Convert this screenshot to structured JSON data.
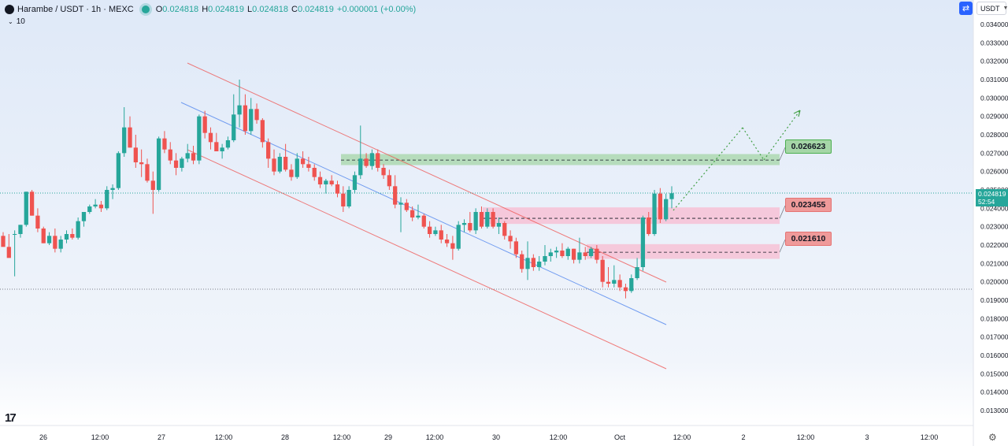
{
  "header": {
    "symbol": "Harambe / USDT · 1h · MEXC",
    "o_label": "O",
    "o_value": "0.024818",
    "h_label": "H",
    "h_value": "0.024819",
    "l_label": "L",
    "l_value": "0.024818",
    "c_label": "C",
    "c_value": "0.024819",
    "change": "+0.000001 (+0.00%)"
  },
  "indicator_count": "10",
  "currency_selector": "USDT",
  "live_price": "0.024819",
  "countdown": "52:54",
  "levels": [
    {
      "label": "0.026623",
      "color": "#4caf50"
    },
    {
      "label": "0.023455",
      "color": "#e57373"
    },
    {
      "label": "0.021610",
      "color": "#e57373"
    }
  ],
  "chart_data": {
    "type": "candlestick",
    "y_axis_ticks": [
      "0.034000",
      "0.033000",
      "0.032000",
      "0.031000",
      "0.030000",
      "0.029000",
      "0.028000",
      "0.027000",
      "0.026000",
      "0.025000",
      "0.024000",
      "0.023000",
      "0.022000",
      "0.021000",
      "0.020000",
      "0.019000",
      "0.018000",
      "0.017000",
      "0.016000",
      "0.015000",
      "0.014000",
      "0.013000"
    ],
    "ylim": [
      0.013,
      0.034
    ],
    "x_axis_ticks": [
      "26",
      "12:00",
      "27",
      "12:00",
      "28",
      "12:00",
      "29",
      "12:00",
      "30",
      "12:00",
      "Oct",
      "12:00",
      "2",
      "12:00",
      "3",
      "12:00"
    ],
    "colors": {
      "up": "#26a69a",
      "down": "#ef5350"
    },
    "candles": [
      [
        0.0225,
        0.0227,
        0.022,
        0.0219
      ],
      [
        0.0219,
        0.0226,
        0.0215,
        0.0213
      ],
      [
        0.0226,
        0.0228,
        0.0203,
        0.0226
      ],
      [
        0.0226,
        0.0231,
        0.0224,
        0.0231
      ],
      [
        0.0231,
        0.0249,
        0.023,
        0.0249
      ],
      [
        0.0249,
        0.025,
        0.0236,
        0.0236
      ],
      [
        0.0236,
        0.024,
        0.0227,
        0.0229
      ],
      [
        0.0229,
        0.023,
        0.0221,
        0.0221
      ],
      [
        0.0221,
        0.0227,
        0.022,
        0.0225
      ],
      [
        0.0225,
        0.0229,
        0.0216,
        0.0218
      ],
      [
        0.0218,
        0.0225,
        0.0216,
        0.0223
      ],
      [
        0.0223,
        0.0228,
        0.0221,
        0.0226
      ],
      [
        0.0226,
        0.0229,
        0.0223,
        0.0224
      ],
      [
        0.0224,
        0.0235,
        0.0223,
        0.0233
      ],
      [
        0.0233,
        0.0238,
        0.023,
        0.0238
      ],
      [
        0.0238,
        0.0242,
        0.0237,
        0.0241
      ],
      [
        0.0241,
        0.0245,
        0.024,
        0.0242
      ],
      [
        0.0242,
        0.0244,
        0.0238,
        0.024
      ],
      [
        0.024,
        0.0252,
        0.0239,
        0.025
      ],
      [
        0.025,
        0.0253,
        0.0245,
        0.0251
      ],
      [
        0.0251,
        0.0271,
        0.025,
        0.027
      ],
      [
        0.027,
        0.0295,
        0.0268,
        0.0284
      ],
      [
        0.0284,
        0.029,
        0.0273,
        0.0273
      ],
      [
        0.0273,
        0.028,
        0.0262,
        0.0265
      ],
      [
        0.0265,
        0.0272,
        0.0257,
        0.0264
      ],
      [
        0.0264,
        0.0267,
        0.0254,
        0.0255
      ],
      [
        0.0255,
        0.026,
        0.0237,
        0.025
      ],
      [
        0.025,
        0.0279,
        0.0249,
        0.0278
      ],
      [
        0.0278,
        0.0282,
        0.027,
        0.0272
      ],
      [
        0.0272,
        0.0276,
        0.0264,
        0.0266
      ],
      [
        0.0266,
        0.027,
        0.0258,
        0.0262
      ],
      [
        0.0262,
        0.0268,
        0.026,
        0.0267
      ],
      [
        0.0267,
        0.0275,
        0.0265,
        0.027
      ],
      [
        0.027,
        0.0274,
        0.0264,
        0.0266
      ],
      [
        0.0266,
        0.0291,
        0.0264,
        0.029
      ],
      [
        0.029,
        0.0293,
        0.0278,
        0.0281
      ],
      [
        0.0281,
        0.0284,
        0.0272,
        0.0276
      ],
      [
        0.0276,
        0.0281,
        0.0271,
        0.0271
      ],
      [
        0.0271,
        0.0275,
        0.0267,
        0.0273
      ],
      [
        0.0273,
        0.0279,
        0.0272,
        0.0277
      ],
      [
        0.0277,
        0.0302,
        0.0276,
        0.0291
      ],
      [
        0.0291,
        0.031,
        0.0284,
        0.0296
      ],
      [
        0.0296,
        0.0302,
        0.028,
        0.0282
      ],
      [
        0.0282,
        0.03,
        0.028,
        0.0294
      ],
      [
        0.0294,
        0.0297,
        0.0286,
        0.0288
      ],
      [
        0.0288,
        0.0289,
        0.0273,
        0.0276
      ],
      [
        0.0276,
        0.0278,
        0.0262,
        0.0267
      ],
      [
        0.0267,
        0.0272,
        0.0258,
        0.026
      ],
      [
        0.026,
        0.027,
        0.0259,
        0.0268
      ],
      [
        0.0268,
        0.0275,
        0.026,
        0.0261
      ],
      [
        0.0261,
        0.0264,
        0.0255,
        0.0257
      ],
      [
        0.0257,
        0.027,
        0.0256,
        0.0267
      ],
      [
        0.0267,
        0.0271,
        0.0262,
        0.0264
      ],
      [
        0.0264,
        0.0268,
        0.026,
        0.0262
      ],
      [
        0.0262,
        0.0264,
        0.0255,
        0.0257
      ],
      [
        0.0257,
        0.026,
        0.0251,
        0.0253
      ],
      [
        0.0253,
        0.0256,
        0.0248,
        0.0255
      ],
      [
        0.0255,
        0.0258,
        0.0252,
        0.0253
      ],
      [
        0.0253,
        0.0255,
        0.0246,
        0.0248
      ],
      [
        0.0248,
        0.0252,
        0.0238,
        0.0241
      ],
      [
        0.0241,
        0.0252,
        0.024,
        0.025
      ],
      [
        0.025,
        0.026,
        0.0248,
        0.0258
      ],
      [
        0.0258,
        0.0285,
        0.0256,
        0.0267
      ],
      [
        0.0267,
        0.027,
        0.0262,
        0.0263
      ],
      [
        0.0263,
        0.0272,
        0.0261,
        0.027
      ],
      [
        0.027,
        0.0272,
        0.026,
        0.0262
      ],
      [
        0.0262,
        0.0264,
        0.0256,
        0.0258
      ],
      [
        0.0258,
        0.0261,
        0.025,
        0.0252
      ],
      [
        0.0252,
        0.0258,
        0.024,
        0.0242
      ],
      [
        0.0242,
        0.0246,
        0.0227,
        0.0243
      ],
      [
        0.0243,
        0.0245,
        0.0238,
        0.0239
      ],
      [
        0.0239,
        0.0241,
        0.0233,
        0.0235
      ],
      [
        0.0235,
        0.0242,
        0.0234,
        0.0236
      ],
      [
        0.0236,
        0.0237,
        0.0229,
        0.023
      ],
      [
        0.023,
        0.0233,
        0.0224,
        0.0226
      ],
      [
        0.0226,
        0.023,
        0.0225,
        0.0228
      ],
      [
        0.0228,
        0.0231,
        0.0221,
        0.0223
      ],
      [
        0.0223,
        0.0226,
        0.0219,
        0.0221
      ],
      [
        0.0221,
        0.0225,
        0.0212,
        0.0218
      ],
      [
        0.0218,
        0.0233,
        0.0217,
        0.0231
      ],
      [
        0.0231,
        0.0234,
        0.0227,
        0.0232
      ],
      [
        0.0232,
        0.0238,
        0.0227,
        0.0228
      ],
      [
        0.0228,
        0.024,
        0.0226,
        0.0238
      ],
      [
        0.0238,
        0.0241,
        0.0229,
        0.023
      ],
      [
        0.023,
        0.024,
        0.0229,
        0.0238
      ],
      [
        0.0238,
        0.024,
        0.0229,
        0.023
      ],
      [
        0.023,
        0.0235,
        0.0226,
        0.0232
      ],
      [
        0.0232,
        0.0233,
        0.0223,
        0.0225
      ],
      [
        0.0225,
        0.0228,
        0.0218,
        0.0222
      ],
      [
        0.0222,
        0.0224,
        0.0213,
        0.0215
      ],
      [
        0.0215,
        0.0217,
        0.0205,
        0.0207
      ],
      [
        0.0207,
        0.0222,
        0.0201,
        0.0213
      ],
      [
        0.0213,
        0.0215,
        0.0206,
        0.0208
      ],
      [
        0.0208,
        0.0214,
        0.0206,
        0.0211
      ],
      [
        0.0211,
        0.022,
        0.0209,
        0.0214
      ],
      [
        0.0214,
        0.0218,
        0.0211,
        0.0216
      ],
      [
        0.0216,
        0.0219,
        0.0213,
        0.0217
      ],
      [
        0.0217,
        0.0221,
        0.0213,
        0.0214
      ],
      [
        0.0214,
        0.0219,
        0.0212,
        0.0218
      ],
      [
        0.0218,
        0.0218,
        0.021,
        0.0212
      ],
      [
        0.0212,
        0.0224,
        0.021,
        0.0216
      ],
      [
        0.0216,
        0.0219,
        0.0212,
        0.0214
      ],
      [
        0.0214,
        0.0219,
        0.0213,
        0.0218
      ],
      [
        0.0218,
        0.022,
        0.021,
        0.0212
      ],
      [
        0.0212,
        0.0214,
        0.0197,
        0.02
      ],
      [
        0.02,
        0.0208,
        0.0197,
        0.0199
      ],
      [
        0.0199,
        0.0209,
        0.0197,
        0.0201
      ],
      [
        0.0201,
        0.0204,
        0.0195,
        0.0197
      ],
      [
        0.0197,
        0.0199,
        0.0191,
        0.0195
      ],
      [
        0.0195,
        0.0204,
        0.0194,
        0.0202
      ],
      [
        0.0202,
        0.0213,
        0.0201,
        0.0208
      ],
      [
        0.0208,
        0.0236,
        0.0206,
        0.0235
      ],
      [
        0.0235,
        0.0238,
        0.0225,
        0.0226
      ],
      [
        0.0226,
        0.025,
        0.0225,
        0.0248
      ],
      [
        0.0248,
        0.0251,
        0.0232,
        0.0234
      ],
      [
        0.0234,
        0.0248,
        0.0233,
        0.0245
      ],
      [
        0.0245,
        0.0252,
        0.024,
        0.024819
      ]
    ]
  }
}
